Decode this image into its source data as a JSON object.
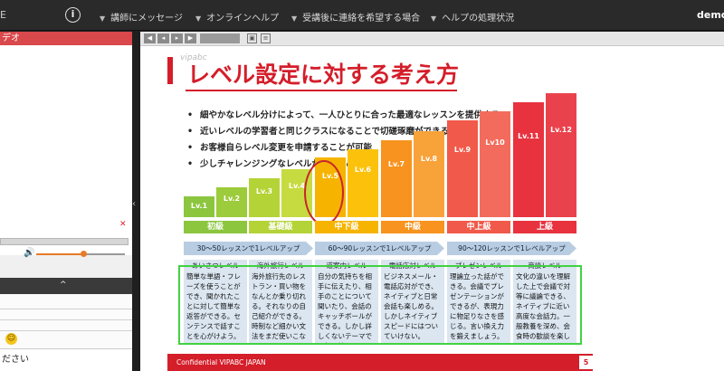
{
  "topbar": {
    "edge_text": "E",
    "info_icon": "info-circle-icon",
    "menus": [
      {
        "label": "講師にメッセージ"
      },
      {
        "label": "オンラインヘルプ"
      },
      {
        "label": "受講後に連絡を希望する場合"
      },
      {
        "label": "ヘルプの処理状況"
      }
    ],
    "user": "demo"
  },
  "left": {
    "video_title": "デオ",
    "chat_input": "ださい"
  },
  "slide": {
    "brand": "vipabc",
    "title": "レベル設定に対する考え方",
    "bullets": [
      "細やかなレベル分けによって、一人ひとりに合った最適なレッスンを提供する",
      "近いレベルの学習者と同じクラスになることで切磋琢磨ができる",
      "お客様自らレベル変更を申請することが可能",
      "少しチャレンジングなレベルがおすすめ"
    ],
    "levels": [
      {
        "label": "Lv.1",
        "color": "#8cc63f"
      },
      {
        "label": "Lv.2",
        "color": "#9ccb3b"
      },
      {
        "label": "Lv.3",
        "color": "#b4d337"
      },
      {
        "label": "Lv.4",
        "color": "#c6db40"
      },
      {
        "label": "Lv.5",
        "color": "#f6b400"
      },
      {
        "label": "Lv.6",
        "color": "#fcc20b"
      },
      {
        "label": "Lv.7",
        "color": "#f7931e"
      },
      {
        "label": "Lv.8",
        "color": "#f8a23a"
      },
      {
        "label": "Lv.9",
        "color": "#f15a4a"
      },
      {
        "label": "Lv10",
        "color": "#f36b5c"
      },
      {
        "label": "Lv.11",
        "color": "#e8333f"
      },
      {
        "label": "Lv.12",
        "color": "#ea424c"
      }
    ],
    "grades": [
      {
        "label": "初級",
        "color": "#8cc63f"
      },
      {
        "label": "基礎級",
        "color": "#b4d337"
      },
      {
        "label": "中下級",
        "color": "#f6b400"
      },
      {
        "label": "中級",
        "color": "#f7931e"
      },
      {
        "label": "中上級",
        "color": "#f15a4a"
      },
      {
        "label": "上級",
        "color": "#e8333f"
      }
    ],
    "lesson_bands": [
      "30～50レッスンで1レベルアップ",
      "60～90レッスンで1レベルアップ",
      "90～120レッスンで1レベルアップ"
    ],
    "level_names": [
      "あいさつレベル",
      "海外旅行レベル",
      "道案内レベル",
      "電話応対レベル",
      "プレゼンレベル",
      "商談レベル"
    ],
    "descriptions": [
      "簡単な単語・フレーズを使うことができ、聞かれたことに対して簡単な返答ができる。センテンスで話すことを心がけよう。",
      "海外旅行先のレストラン・買い物をなんとか乗り切れる。それなりの自己紹介ができる。時制など細かい文法をまだ使いこなせない。",
      "自分の気持ちを相手に伝えたり、相手のことについて聞いたり、会話のキャッチボールができる。しかし詳しくないテーマでは行き詰ってしまう。",
      "ビジネスメール・電話応対ができ、ネイティブと日常会話も楽しめる。しかしネイティブスピードにはついていけない。",
      "理論立った話ができる。会議でプレゼンテーションができるが、表現力に物足りなさを感じる。言い換え力を鍛えましょう。",
      "文化の違いを理解した上で会議で対等に議論できる、ネイティブに近い高度な会話力。一般教養を深め、会食時の歓談を楽しもう。"
    ],
    "footer": "Confidential VIPABC JAPAN",
    "page": "5"
  }
}
